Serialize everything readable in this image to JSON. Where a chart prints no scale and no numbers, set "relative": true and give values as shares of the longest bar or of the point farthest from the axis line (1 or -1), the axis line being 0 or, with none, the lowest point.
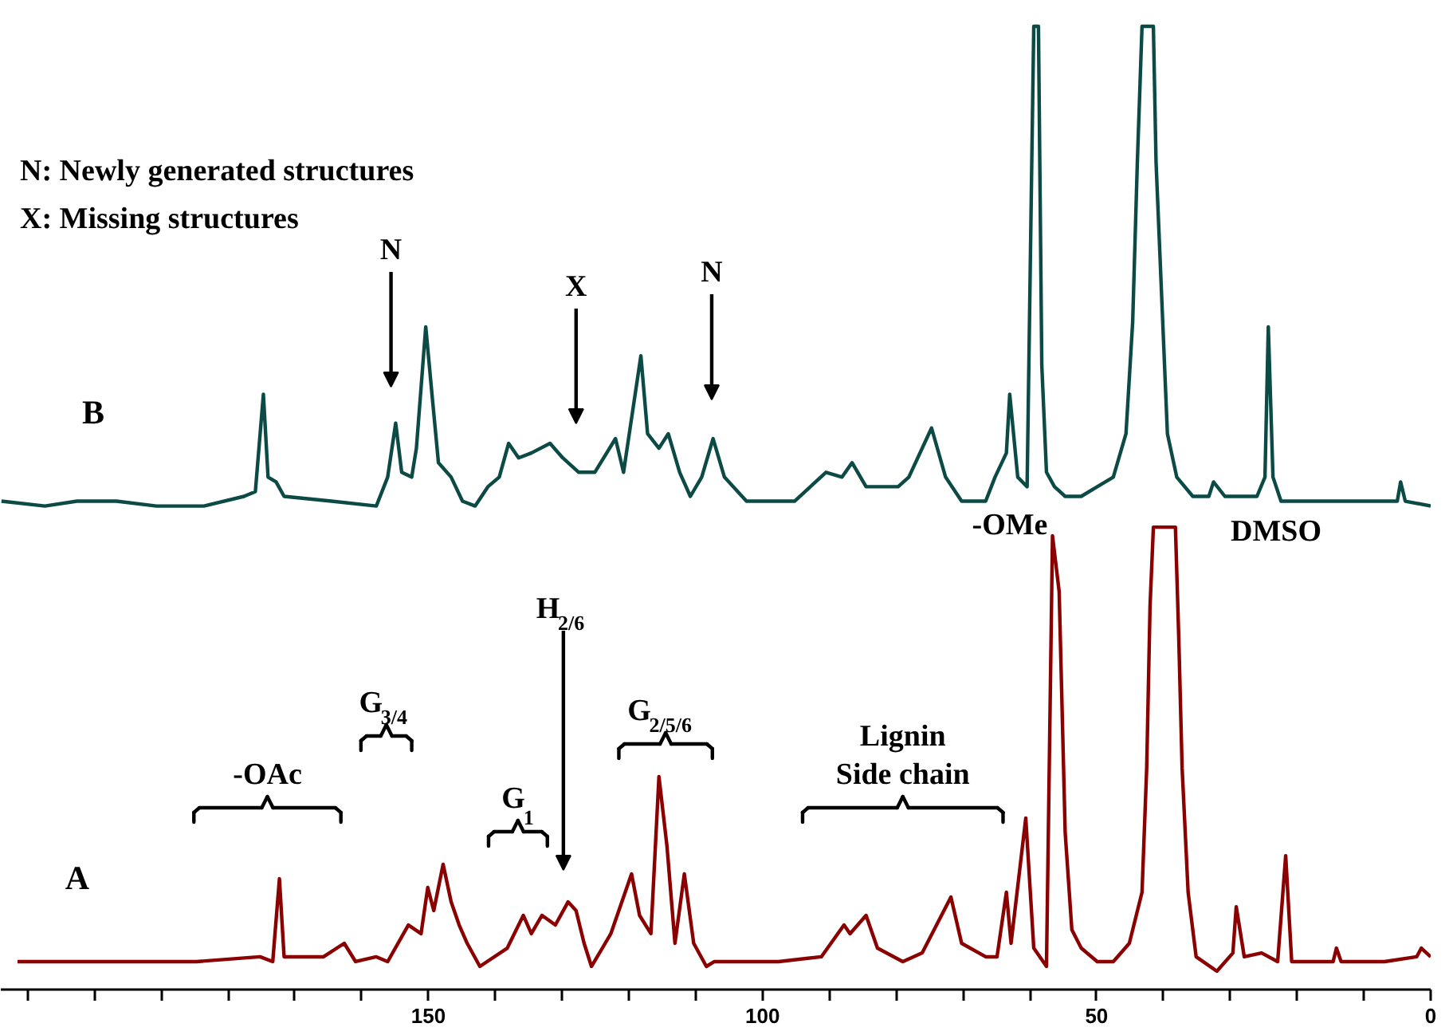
{
  "chart_data": {
    "type": "line",
    "relative": true,
    "xlim": [
      214,
      0
    ],
    "xticks": [
      {
        "value": 210,
        "label": null
      },
      {
        "value": 200,
        "label": null
      },
      {
        "value": 190,
        "label": null
      },
      {
        "value": 180,
        "label": null
      },
      {
        "value": 170,
        "label": null
      },
      {
        "value": 160,
        "label": null
      },
      150,
      {
        "value": 140,
        "label": null
      },
      {
        "value": 130,
        "label": null
      },
      {
        "value": 120,
        "label": null
      },
      {
        "value": 110,
        "label": null
      },
      100,
      {
        "value": 90,
        "label": null
      },
      {
        "value": 80,
        "label": null
      },
      {
        "value": 70,
        "label": null
      },
      {
        "value": 60,
        "label": null
      },
      50,
      {
        "value": 40,
        "label": null
      },
      {
        "value": 30,
        "label": null
      },
      {
        "value": 20,
        "label": null
      },
      {
        "value": 10,
        "label": null
      },
      0
    ],
    "series": [
      {
        "name": "B",
        "color": "#0b4a45",
        "x": [
          213.9,
          207.4,
          202.6,
          196.7,
          190.7,
          183.6,
          177.6,
          175.9,
          174.7,
          174.0,
          172.8,
          171.6,
          164.5,
          157.8,
          156.1,
          154.9,
          154.0,
          152.5,
          151.8,
          150.4,
          149.4,
          148.5,
          146.6,
          144.9,
          143.0,
          141.1,
          139.4,
          138.0,
          136.5,
          134.6,
          131.8,
          129.9,
          127.5,
          125.1,
          122.0,
          120.8,
          118.2,
          117.2,
          115.5,
          114.1,
          112.4,
          110.8,
          109.1,
          107.4,
          105.7,
          102.4,
          100.0,
          95.2,
          90.5,
          88.1,
          86.6,
          84.5,
          79.7,
          78.1,
          74.7,
          72.6,
          70.2,
          66.6,
          65.2,
          63.5,
          63.0,
          61.8,
          60.4,
          59.7,
          59.4,
          58.7,
          58.2,
          57.5,
          56.3,
          54.7,
          52.3,
          49.9,
          47.5,
          45.6,
          44.6,
          43.9,
          43.2,
          41.5,
          41.1,
          40.1,
          39.4,
          38.0,
          35.6,
          33.2,
          32.5,
          30.8,
          26.0,
          24.8,
          24.3,
          23.6,
          22.4,
          14.1,
          5.0,
          4.5,
          3.8,
          0.0
        ],
        "values": [
          0.507,
          0.502,
          0.507,
          0.507,
          0.502,
          0.502,
          0.512,
          0.517,
          0.618,
          0.532,
          0.527,
          0.512,
          0.507,
          0.502,
          0.532,
          0.588,
          0.537,
          0.532,
          0.562,
          0.688,
          0.613,
          0.547,
          0.532,
          0.507,
          0.502,
          0.522,
          0.532,
          0.567,
          0.552,
          0.557,
          0.567,
          0.552,
          0.537,
          0.537,
          0.572,
          0.537,
          0.658,
          0.577,
          0.562,
          0.577,
          0.537,
          0.512,
          0.532,
          0.572,
          0.532,
          0.507,
          0.507,
          0.507,
          0.537,
          0.532,
          0.547,
          0.522,
          0.522,
          0.532,
          0.583,
          0.532,
          0.507,
          0.507,
          0.532,
          0.557,
          0.618,
          0.532,
          0.522,
          0.859,
          1.0,
          1.0,
          0.648,
          0.537,
          0.522,
          0.512,
          0.512,
          0.522,
          0.532,
          0.577,
          0.693,
          0.859,
          1.0,
          1.0,
          0.859,
          0.693,
          0.577,
          0.532,
          0.512,
          0.512,
          0.527,
          0.512,
          0.512,
          0.532,
          0.688,
          0.532,
          0.507,
          0.507,
          0.507,
          0.527,
          0.507,
          0.502
        ]
      },
      {
        "name": "A",
        "color": "#8b0000",
        "x": [
          211.5,
          202.6,
          193.1,
          184.7,
          175.2,
          173.3,
          172.3,
          171.6,
          165.7,
          162.6,
          160.9,
          157.8,
          156.1,
          153.0,
          151.1,
          150.1,
          149.2,
          147.8,
          146.6,
          145.4,
          144.2,
          142.3,
          138.2,
          135.8,
          134.6,
          133.0,
          131.0,
          129.1,
          127.9,
          126.7,
          125.6,
          122.7,
          119.6,
          118.4,
          116.7,
          115.5,
          114.3,
          113.1,
          111.7,
          110.3,
          108.4,
          107.2,
          97.6,
          91.2,
          87.8,
          86.9,
          84.5,
          82.8,
          79.0,
          76.1,
          71.8,
          70.2,
          66.6,
          64.9,
          63.5,
          62.8,
          60.6,
          59.4,
          57.5,
          56.6,
          55.6,
          54.7,
          53.7,
          52.3,
          49.9,
          47.5,
          45.1,
          43.2,
          42.5,
          42.0,
          41.5,
          38.2,
          37.7,
          37.2,
          36.3,
          35.1,
          32.0,
          29.6,
          29.1,
          27.9,
          25.3,
          22.9,
          21.7,
          20.8,
          14.6,
          14.1,
          13.4,
          6.9,
          2.1,
          1.4,
          0.0
        ],
        "values": [
          0.029,
          0.029,
          0.029,
          0.029,
          0.034,
          0.029,
          0.115,
          0.034,
          0.034,
          0.048,
          0.029,
          0.034,
          0.029,
          0.067,
          0.058,
          0.106,
          0.082,
          0.13,
          0.091,
          0.067,
          0.048,
          0.024,
          0.043,
          0.077,
          0.058,
          0.077,
          0.067,
          0.091,
          0.082,
          0.048,
          0.024,
          0.058,
          0.12,
          0.077,
          0.058,
          0.221,
          0.149,
          0.048,
          0.12,
          0.048,
          0.024,
          0.029,
          0.029,
          0.034,
          0.067,
          0.058,
          0.077,
          0.043,
          0.029,
          0.038,
          0.096,
          0.048,
          0.034,
          0.034,
          0.101,
          0.048,
          0.178,
          0.043,
          0.024,
          0.471,
          0.413,
          0.163,
          0.062,
          0.043,
          0.029,
          0.029,
          0.048,
          0.101,
          0.23,
          0.398,
          0.48,
          0.48,
          0.365,
          0.23,
          0.101,
          0.034,
          0.019,
          0.038,
          0.086,
          0.034,
          0.038,
          0.029,
          0.139,
          0.029,
          0.029,
          0.043,
          0.029,
          0.029,
          0.034,
          0.043,
          0.034
        ]
      }
    ],
    "annotations": [
      "N: Newly generated structures",
      "X: Missing structures",
      "N",
      "X",
      "N",
      "-OMe",
      "DMSO",
      "-OAc",
      "G$_{3/4}$",
      "G$_{1}$",
      "H$_{2/6}$",
      "G$_{2/5/6}$",
      "Lignin\nSide chain"
    ]
  }
}
